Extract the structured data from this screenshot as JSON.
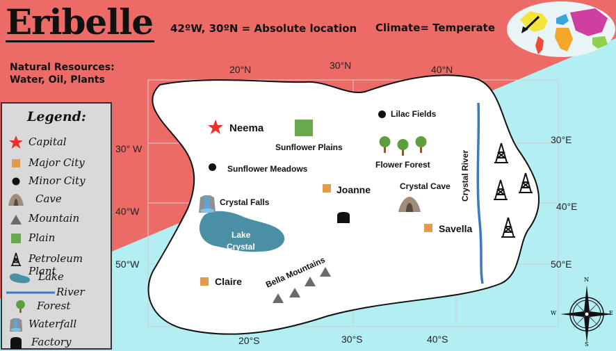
{
  "title": "Eribelle",
  "absolute_location": "42ºW, 30ºN = Absolute location",
  "climate": "Climate= Temperate",
  "natural_resources": {
    "line1": "Natural Resources:",
    "line2": "Water, Oil, Plants"
  },
  "grid_labels": {
    "top": [
      "20°N",
      "30°N",
      "40°N"
    ],
    "bottom": [
      "20°S",
      "30°S",
      "40°S"
    ],
    "left": [
      "30° W",
      "40°W",
      "50°W"
    ],
    "right": [
      "30°E",
      "40°E",
      "50°E"
    ]
  },
  "places": {
    "neema": "Neema",
    "sunflower_plains": "Sunflower Plains",
    "sunflower_meadows": "Sunflower Meadows",
    "lilac_fields": "Lilac Fields",
    "flower_forest": "Flower Forest",
    "crystal_river": "Crystal River",
    "crystal_falls": "Crystal Falls",
    "joanne": "Joanne",
    "crystal_cave": "Crystal Cave",
    "lake_crystal_1": "Lake",
    "lake_crystal_2": "Crystal",
    "savella": "Savella",
    "claire": "Claire",
    "bella_mountains": "Bella Mountains"
  },
  "legend": {
    "title": "Legend:",
    "items": [
      {
        "label": "Capital",
        "icon": "star-icon"
      },
      {
        "label": "Major City",
        "icon": "square-icon"
      },
      {
        "label": "Minor City",
        "icon": "dot-icon"
      },
      {
        "label": "Cave",
        "icon": "cave-icon"
      },
      {
        "label": "Mountain",
        "icon": "mountain-icon"
      },
      {
        "label": "Plain",
        "icon": "plain-icon"
      },
      {
        "label": "Petroleum Plant",
        "icon": "oil-derrick-icon"
      },
      {
        "label": "Lake",
        "icon": "lake-icon"
      },
      {
        "label": "River",
        "icon": "river-icon"
      },
      {
        "label": "Forest",
        "icon": "tree-icon"
      },
      {
        "label": "Waterfall",
        "icon": "waterfall-icon"
      },
      {
        "label": "Factory",
        "icon": "factory-icon"
      }
    ]
  },
  "compass": {
    "n": "N",
    "s": "S",
    "e": "E",
    "w": "W"
  },
  "colors": {
    "land_red": "#ec6b67",
    "sea_cyan": "#b3eef3",
    "island": "#ffffff",
    "major_city": "#e29a4f",
    "capital": "#e8322a",
    "plain": "#6aa84f",
    "lake": "#4a8fa3",
    "river": "#3d78c2",
    "mountain": "#6b6b6b",
    "cave": "#a08c7a"
  }
}
